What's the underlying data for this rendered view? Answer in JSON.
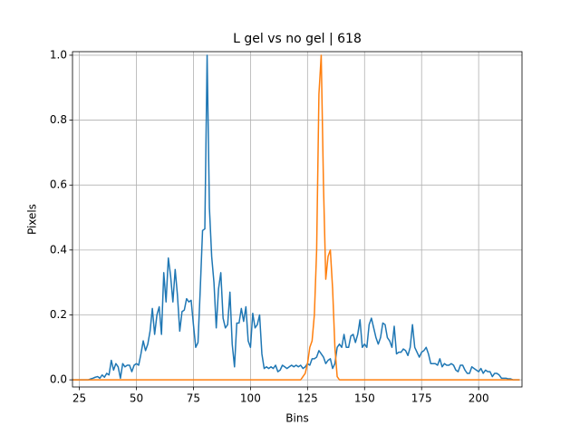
{
  "chart_data": {
    "type": "line",
    "title": "L gel vs no gel | 618",
    "x_label": "Bins",
    "y_label": "Pixels",
    "x": [
      22,
      23,
      24,
      25,
      26,
      27,
      28,
      29,
      30,
      31,
      32,
      33,
      34,
      35,
      36,
      37,
      38,
      39,
      40,
      41,
      42,
      43,
      44,
      45,
      46,
      47,
      48,
      49,
      50,
      51,
      52,
      53,
      54,
      55,
      56,
      57,
      58,
      59,
      60,
      61,
      62,
      63,
      64,
      65,
      66,
      67,
      68,
      69,
      70,
      71,
      72,
      73,
      74,
      75,
      76,
      77,
      78,
      79,
      80,
      81,
      82,
      83,
      84,
      85,
      86,
      87,
      88,
      89,
      90,
      91,
      92,
      93,
      94,
      95,
      96,
      97,
      98,
      99,
      100,
      101,
      102,
      103,
      104,
      105,
      106,
      107,
      108,
      109,
      110,
      111,
      112,
      113,
      114,
      115,
      116,
      117,
      118,
      119,
      120,
      121,
      122,
      123,
      124,
      125,
      126,
      127,
      128,
      129,
      130,
      131,
      132,
      133,
      134,
      135,
      136,
      137,
      138,
      139,
      140,
      141,
      142,
      143,
      144,
      145,
      146,
      147,
      148,
      149,
      150,
      151,
      152,
      153,
      154,
      155,
      156,
      157,
      158,
      159,
      160,
      161,
      162,
      163,
      164,
      165,
      166,
      167,
      168,
      169,
      170,
      171,
      172,
      173,
      174,
      175,
      176,
      177,
      178,
      179,
      180,
      181,
      182,
      183,
      184,
      185,
      186,
      187,
      188,
      189,
      190,
      191,
      192,
      193,
      194,
      195,
      196,
      197,
      198,
      199,
      200,
      201,
      202,
      203,
      204,
      205,
      206,
      207,
      208,
      209,
      210,
      211,
      212,
      213,
      214,
      215,
      216,
      217,
      218
    ],
    "series": [
      {
        "color": "#1f77b4",
        "values": [
          0,
          0,
          0,
          0,
          0,
          0,
          0,
          0,
          0.003,
          0.005,
          0.008,
          0.01,
          0.005,
          0.015,
          0.008,
          0.02,
          0.015,
          0.06,
          0.03,
          0.05,
          0.04,
          0.005,
          0.05,
          0.04,
          0.045,
          0.045,
          0.025,
          0.045,
          0.05,
          0.045,
          0.08,
          0.12,
          0.09,
          0.11,
          0.15,
          0.22,
          0.14,
          0.2,
          0.225,
          0.14,
          0.33,
          0.24,
          0.375,
          0.32,
          0.24,
          0.34,
          0.26,
          0.15,
          0.21,
          0.215,
          0.25,
          0.24,
          0.245,
          0.17,
          0.1,
          0.115,
          0.28,
          0.46,
          0.465,
          1.0,
          0.53,
          0.38,
          0.3,
          0.16,
          0.28,
          0.33,
          0.19,
          0.16,
          0.17,
          0.27,
          0.11,
          0.04,
          0.175,
          0.175,
          0.22,
          0.18,
          0.225,
          0.12,
          0.1,
          0.205,
          0.16,
          0.17,
          0.2,
          0.08,
          0.035,
          0.04,
          0.035,
          0.04,
          0.035,
          0.045,
          0.025,
          0.03,
          0.045,
          0.04,
          0.035,
          0.04,
          0.045,
          0.04,
          0.045,
          0.04,
          0.045,
          0.035,
          0.04,
          0.05,
          0.045,
          0.065,
          0.065,
          0.07,
          0.09,
          0.08,
          0.07,
          0.05,
          0.06,
          0.065,
          0.035,
          0.05,
          0.1,
          0.11,
          0.1,
          0.14,
          0.1,
          0.1,
          0.135,
          0.14,
          0.115,
          0.14,
          0.185,
          0.1,
          0.11,
          0.1,
          0.17,
          0.19,
          0.16,
          0.13,
          0.11,
          0.13,
          0.175,
          0.17,
          0.13,
          0.12,
          0.1,
          0.165,
          0.08,
          0.085,
          0.085,
          0.095,
          0.09,
          0.075,
          0.1,
          0.17,
          0.1,
          0.085,
          0.07,
          0.085,
          0.09,
          0.1,
          0.08,
          0.05,
          0.05,
          0.05,
          0.045,
          0.065,
          0.04,
          0.05,
          0.045,
          0.045,
          0.05,
          0.045,
          0.03,
          0.025,
          0.045,
          0.045,
          0.03,
          0.02,
          0.02,
          0.04,
          0.035,
          0.03,
          0.025,
          0.035,
          0.02,
          0.03,
          0.025,
          0.025,
          0.01,
          0.02,
          0.02,
          0.015,
          0.005,
          0.005,
          0.005,
          0.003,
          0.003,
          0,
          0,
          0,
          0
        ]
      },
      {
        "color": "#ff7f0e",
        "values": [
          0,
          0,
          0,
          0,
          0,
          0,
          0,
          0,
          0,
          0,
          0,
          0,
          0,
          0,
          0,
          0,
          0,
          0,
          0,
          0,
          0,
          0,
          0,
          0,
          0,
          0,
          0,
          0,
          0,
          0,
          0,
          0,
          0,
          0,
          0,
          0,
          0,
          0,
          0,
          0,
          0,
          0,
          0,
          0,
          0,
          0,
          0,
          0,
          0,
          0,
          0,
          0,
          0,
          0,
          0,
          0,
          0,
          0,
          0,
          0,
          0,
          0,
          0,
          0,
          0,
          0,
          0,
          0,
          0,
          0,
          0,
          0,
          0,
          0,
          0,
          0,
          0,
          0,
          0,
          0,
          0,
          0,
          0,
          0,
          0,
          0,
          0,
          0,
          0,
          0,
          0,
          0,
          0,
          0,
          0,
          0,
          0,
          0,
          0,
          0,
          0,
          0.01,
          0.02,
          0.05,
          0.1,
          0.12,
          0.2,
          0.4,
          0.88,
          1.0,
          0.6,
          0.31,
          0.38,
          0.4,
          0.28,
          0.1,
          0.01,
          0,
          0,
          0,
          0,
          0,
          0,
          0,
          0,
          0,
          0,
          0,
          0,
          0,
          0,
          0,
          0,
          0,
          0,
          0,
          0,
          0,
          0,
          0,
          0,
          0,
          0,
          0,
          0,
          0,
          0,
          0,
          0,
          0,
          0,
          0,
          0,
          0,
          0,
          0,
          0,
          0,
          0,
          0,
          0,
          0,
          0,
          0,
          0,
          0,
          0,
          0,
          0,
          0,
          0,
          0,
          0,
          0,
          0,
          0,
          0,
          0,
          0,
          0,
          0,
          0,
          0,
          0,
          0,
          0,
          0,
          0,
          0,
          0,
          0,
          0,
          0,
          0,
          0,
          0,
          0
        ]
      }
    ],
    "xlim": [
      22,
      219
    ],
    "ylim": [
      -0.022,
      1.011
    ],
    "xticks": [
      25,
      50,
      75,
      100,
      125,
      150,
      175,
      200
    ],
    "yticks": [
      {
        "value": 0,
        "label": "0.0"
      },
      0.2,
      0.4,
      0.6,
      0.8,
      {
        "value": 1,
        "label": "1.0"
      }
    ],
    "grid": true
  }
}
